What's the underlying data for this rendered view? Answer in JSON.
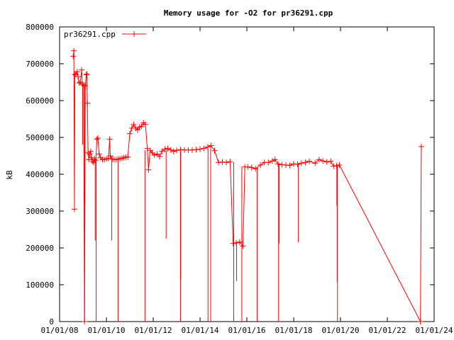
{
  "chart_data": {
    "type": "line",
    "title": "Memory usage for -O2 for pr36291.cpp",
    "xlabel": "",
    "ylabel": "kB",
    "ylim": [
      0,
      800000
    ],
    "xlim": [
      "2008-01-01",
      "2024-01-01"
    ],
    "grid": false,
    "legend_position": "top-left",
    "x_tick_labels": [
      "01/01/08",
      "01/01/10",
      "01/01/12",
      "01/01/14",
      "01/01/16",
      "01/01/18",
      "01/01/20",
      "01/01/22",
      "01/01/24"
    ],
    "y_tick_labels": [
      "0",
      "100000",
      "200000",
      "300000",
      "400000",
      "500000",
      "600000",
      "700000",
      "800000"
    ],
    "y_tick_values": [
      0,
      100000,
      200000,
      300000,
      400000,
      500000,
      600000,
      700000,
      800000
    ],
    "series": [
      {
        "name": "pr36291.cpp",
        "color": "#ff0000",
        "marker": "plus",
        "points": [
          [
            "2008-08-01",
            720000
          ],
          [
            "2008-08-10",
            735000
          ],
          [
            "2008-08-20",
            305000
          ],
          [
            "2008-08-25",
            670000
          ],
          [
            "2008-09-10",
            672000
          ],
          [
            "2008-10-01",
            678000
          ],
          [
            "2008-10-15",
            665000
          ],
          [
            "2008-11-01",
            648000
          ],
          [
            "2008-11-20",
            650000
          ],
          [
            "2008-12-10",
            683000
          ],
          [
            "2008-12-20",
            645000
          ],
          [
            "2009-01-10",
            642000
          ],
          [
            "2009-01-25",
            0
          ],
          [
            "2009-02-05",
            640000
          ],
          [
            "2009-02-20",
            670000
          ],
          [
            "2009-03-01",
            672000
          ],
          [
            "2009-03-10",
            593000
          ],
          [
            "2009-03-20",
            458000
          ],
          [
            "2009-04-01",
            440000
          ],
          [
            "2009-04-15",
            455000
          ],
          [
            "2009-05-01",
            462000
          ],
          [
            "2009-05-10",
            445000
          ],
          [
            "2009-06-01",
            435000
          ],
          [
            "2009-06-15",
            432000
          ],
          [
            "2009-07-01",
            442000
          ],
          [
            "2009-07-20",
            438000
          ],
          [
            "2009-08-05",
            495000
          ],
          [
            "2009-08-20",
            498000
          ],
          [
            "2009-09-10",
            455000
          ],
          [
            "2009-10-01",
            445000
          ],
          [
            "2009-11-01",
            440000
          ],
          [
            "2009-12-01",
            440000
          ],
          [
            "2010-01-01",
            442000
          ],
          [
            "2010-02-01",
            443000
          ],
          [
            "2010-02-20",
            495000
          ],
          [
            "2010-03-01",
            450000
          ],
          [
            "2010-04-01",
            441000
          ],
          [
            "2010-05-01",
            440000
          ],
          [
            "2010-06-01",
            440000
          ],
          [
            "2010-07-01",
            441000
          ],
          [
            "2010-08-01",
            442000
          ],
          [
            "2010-09-01",
            443000
          ],
          [
            "2010-10-01",
            445000
          ],
          [
            "2010-11-01",
            446000
          ],
          [
            "2010-12-01",
            447000
          ],
          [
            "2011-01-01",
            510000
          ],
          [
            "2011-02-01",
            525000
          ],
          [
            "2011-03-01",
            535000
          ],
          [
            "2011-04-01",
            525000
          ],
          [
            "2011-05-01",
            520000
          ],
          [
            "2011-06-01",
            528000
          ],
          [
            "2011-07-01",
            530000
          ],
          [
            "2011-08-01",
            540000
          ],
          [
            "2011-09-01",
            535000
          ],
          [
            "2011-10-01",
            470000
          ],
          [
            "2011-10-20",
            412000
          ],
          [
            "2011-11-15",
            465000
          ],
          [
            "2011-12-15",
            458000
          ],
          [
            "2012-01-20",
            452000
          ],
          [
            "2012-03-01",
            455000
          ],
          [
            "2012-04-10",
            448000
          ],
          [
            "2012-05-15",
            462000
          ],
          [
            "2012-07-01",
            468000
          ],
          [
            "2012-08-15",
            470000
          ],
          [
            "2012-10-01",
            466000
          ],
          [
            "2012-11-15",
            462000
          ],
          [
            "2013-01-01",
            465000
          ],
          [
            "2013-03-01",
            467000
          ],
          [
            "2013-05-01",
            466000
          ],
          [
            "2013-07-01",
            466000
          ],
          [
            "2013-09-01",
            466000
          ],
          [
            "2013-11-01",
            467000
          ],
          [
            "2014-01-01",
            468000
          ],
          [
            "2014-03-01",
            470000
          ],
          [
            "2014-05-01",
            474000
          ],
          [
            "2014-06-20",
            478000
          ],
          [
            "2014-08-15",
            464000
          ],
          [
            "2014-10-15",
            432000
          ],
          [
            "2014-12-15",
            433000
          ],
          [
            "2015-02-15",
            432000
          ],
          [
            "2015-04-15",
            434000
          ],
          [
            "2015-06-01",
            212000
          ],
          [
            "2015-07-20",
            214000
          ],
          [
            "2015-09-10",
            216000
          ],
          [
            "2015-11-01",
            205000
          ],
          [
            "2015-12-01",
            420000
          ],
          [
            "2016-01-15",
            420000
          ],
          [
            "2016-03-15",
            418000
          ],
          [
            "2016-05-15",
            415000
          ],
          [
            "2016-08-01",
            425000
          ],
          [
            "2016-10-01",
            432000
          ],
          [
            "2016-12-01",
            432000
          ],
          [
            "2017-02-01",
            436000
          ],
          [
            "2017-03-15",
            440000
          ],
          [
            "2017-05-01",
            428000
          ],
          [
            "2017-07-01",
            426000
          ],
          [
            "2017-09-01",
            425000
          ],
          [
            "2017-11-01",
            424000
          ],
          [
            "2018-01-01",
            428000
          ],
          [
            "2018-03-01",
            427000
          ],
          [
            "2018-05-01",
            430000
          ],
          [
            "2018-07-01",
            432000
          ],
          [
            "2018-09-01",
            435000
          ],
          [
            "2018-12-01",
            430000
          ],
          [
            "2019-02-01",
            440000
          ],
          [
            "2019-04-01",
            436000
          ],
          [
            "2019-06-01",
            433000
          ],
          [
            "2019-08-01",
            435000
          ],
          [
            "2019-09-15",
            422000
          ],
          [
            "2019-11-01",
            423000
          ],
          [
            "2019-12-15",
            425000
          ],
          [
            "2023-06-01",
            0
          ],
          [
            "2023-06-15",
            475000
          ]
        ]
      }
    ],
    "drops": [
      [
        "2008-12-25",
        480000,
        647000
      ],
      [
        "2009-01-25",
        0,
        640000
      ],
      [
        "2009-07-10",
        220000,
        435000
      ],
      [
        "2009-07-25",
        0,
        440000
      ],
      [
        "2010-03-25",
        220000,
        448000
      ],
      [
        "2010-07-01",
        0,
        441000
      ],
      [
        "2011-08-25",
        0,
        465000
      ],
      [
        "2012-07-20",
        225000,
        465000
      ],
      [
        "2013-03-01",
        0,
        465000
      ],
      [
        "2013-03-05",
        115000,
        465000
      ],
      [
        "2014-05-05",
        0,
        470000
      ],
      [
        "2014-06-15",
        0,
        470000
      ],
      [
        "2015-06-10",
        0,
        433000
      ],
      [
        "2015-07-25",
        110000,
        214000
      ],
      [
        "2015-10-15",
        0,
        420000
      ],
      [
        "2016-06-10",
        0,
        418000
      ],
      [
        "2017-05-10",
        0,
        430000
      ],
      [
        "2017-05-20",
        212000,
        428000
      ],
      [
        "2018-03-15",
        215000,
        430000
      ],
      [
        "2019-11-05",
        315000,
        425000
      ],
      [
        "2019-11-10",
        108000,
        425000
      ],
      [
        "2019-11-15",
        0,
        425000
      ]
    ]
  }
}
